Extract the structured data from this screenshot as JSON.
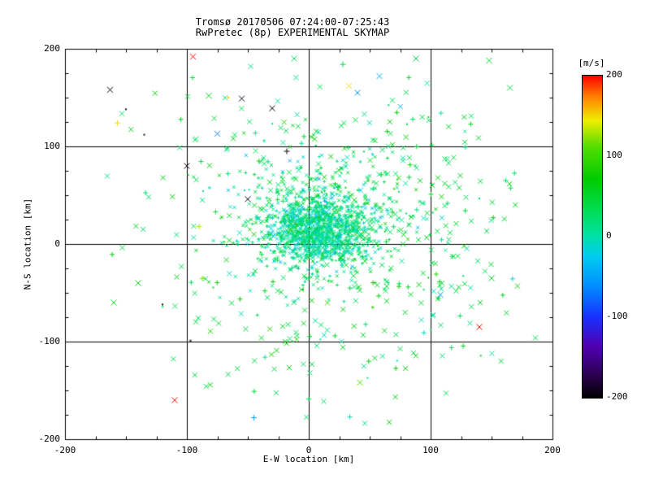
{
  "chart_data": {
    "type": "scatter",
    "title": "Tromsø 20170506 07:24:00-07:25:43",
    "subtitle": "RwPretec (8p) EXPERIMENTAL SKYMAP",
    "xlabel": "E-W location [km]",
    "ylabel": "N-S location [km]",
    "xlim": [
      -200,
      200
    ],
    "ylim": [
      -200,
      200
    ],
    "xticks": [
      -200,
      -100,
      0,
      100,
      200
    ],
    "yticks": [
      -200,
      -100,
      0,
      100,
      200
    ],
    "minor_tick_interval": 25,
    "grid": true,
    "background": "#ffffff",
    "axis_color": "#000000",
    "colorbar": {
      "label": "[m/s]",
      "min": -200,
      "max": 200,
      "ticks": [
        200,
        100,
        0,
        -100,
        -200
      ],
      "stops": [
        {
          "p": 0.0,
          "c": "#000000"
        },
        {
          "p": 0.07,
          "c": "#2a0050"
        },
        {
          "p": 0.16,
          "c": "#5000b0"
        },
        {
          "p": 0.25,
          "c": "#1830ff"
        },
        {
          "p": 0.35,
          "c": "#0090ff"
        },
        {
          "p": 0.44,
          "c": "#00ccee"
        },
        {
          "p": 0.5,
          "c": "#00e0a8"
        },
        {
          "p": 0.58,
          "c": "#00dd55"
        },
        {
          "p": 0.68,
          "c": "#00cc00"
        },
        {
          "p": 0.78,
          "c": "#55dd00"
        },
        {
          "p": 0.86,
          "c": "#eeee00"
        },
        {
          "p": 0.93,
          "c": "#ff8800"
        },
        {
          "p": 1.0,
          "c": "#ff0000"
        }
      ]
    },
    "seed": 20170506,
    "clusters": [
      {
        "count": 1000,
        "cx": 8,
        "cy": 15,
        "sx": 20,
        "sy": 18,
        "v_mean": 5,
        "v_sd": 22,
        "size": 2
      },
      {
        "count": 550,
        "cx": 12,
        "cy": 25,
        "sx": 40,
        "sy": 35,
        "v_mean": 25,
        "v_sd": 28,
        "size": 2
      },
      {
        "count": 260,
        "cx": 20,
        "cy": 10,
        "sx": 72,
        "sy": 60,
        "v_mean": 38,
        "v_sd": 25,
        "size": 3
      },
      {
        "count": 70,
        "cx": 112,
        "cy": 15,
        "sx": 42,
        "sy": 70,
        "v_mean": 45,
        "v_sd": 18,
        "size": 3
      },
      {
        "count": 60,
        "cx": 30,
        "cy": 118,
        "sx": 58,
        "sy": 42,
        "v_mean": 32,
        "v_sd": 25,
        "size": 3
      },
      {
        "count": 70,
        "cx": 5,
        "cy": -98,
        "sx": 62,
        "sy": 45,
        "v_mean": 40,
        "v_sd": 25,
        "size": 3
      }
    ],
    "outliers": [
      {
        "x": -95,
        "y": 192,
        "v": 200,
        "m": "x"
      },
      {
        "x": -163,
        "y": 158,
        "v": -195,
        "m": "x"
      },
      {
        "x": -150,
        "y": 138,
        "v": -190,
        "m": "."
      },
      {
        "x": -157,
        "y": 124,
        "v": 150,
        "m": "+"
      },
      {
        "x": -135,
        "y": 112,
        "v": -190,
        "m": "."
      },
      {
        "x": -82,
        "y": 152,
        "v": 60,
        "m": "x"
      },
      {
        "x": -66,
        "y": 150,
        "v": 160,
        "m": "."
      },
      {
        "x": -55,
        "y": 149,
        "v": -190,
        "m": "x"
      },
      {
        "x": -30,
        "y": 139,
        "v": -190,
        "m": "x"
      },
      {
        "x": -75,
        "y": 113,
        "v": -70,
        "m": "x"
      },
      {
        "x": -100,
        "y": 80,
        "v": -190,
        "m": "x"
      },
      {
        "x": -90,
        "y": 18,
        "v": 130,
        "m": "+"
      },
      {
        "x": -50,
        "y": 46,
        "v": -190,
        "m": "x"
      },
      {
        "x": -18,
        "y": 95,
        "v": -195,
        "m": "+"
      },
      {
        "x": 33,
        "y": 162,
        "v": 150,
        "m": "x"
      },
      {
        "x": 40,
        "y": 155,
        "v": -60,
        "m": "x"
      },
      {
        "x": -12,
        "y": 190,
        "v": 30,
        "m": "x"
      },
      {
        "x": 28,
        "y": 184,
        "v": 40,
        "m": "+"
      },
      {
        "x": 88,
        "y": 190,
        "v": 45,
        "m": "x"
      },
      {
        "x": 58,
        "y": 172,
        "v": -40,
        "m": "x"
      },
      {
        "x": 148,
        "y": 188,
        "v": 50,
        "m": "x"
      },
      {
        "x": 165,
        "y": 160,
        "v": 45,
        "m": "x"
      },
      {
        "x": -110,
        "y": -160,
        "v": 195,
        "m": "x"
      },
      {
        "x": 140,
        "y": -85,
        "v": 200,
        "m": "x"
      },
      {
        "x": 42,
        "y": -142,
        "v": 110,
        "m": "x"
      },
      {
        "x": -45,
        "y": -178,
        "v": -50,
        "m": "+"
      },
      {
        "x": -120,
        "y": -62,
        "v": -190,
        "m": "."
      },
      {
        "x": -97,
        "y": -99,
        "v": -190,
        "m": "."
      },
      {
        "x": -140,
        "y": -40,
        "v": 60,
        "m": "x"
      },
      {
        "x": -160,
        "y": -60,
        "v": 55,
        "m": "x"
      },
      {
        "x": 108,
        "y": -52,
        "v": -60,
        "m": "x"
      },
      {
        "x": 150,
        "y": -35,
        "v": 55,
        "m": "x"
      }
    ]
  }
}
